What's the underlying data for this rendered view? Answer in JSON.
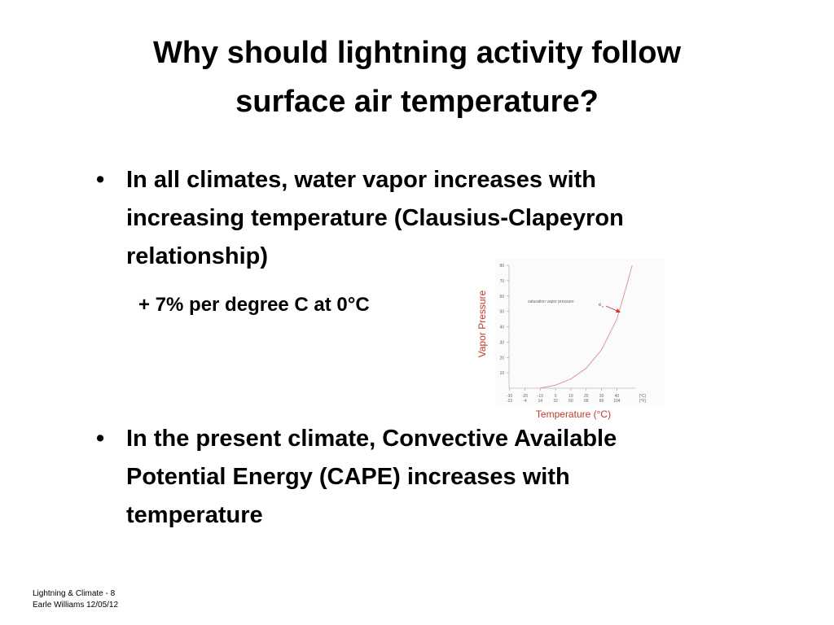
{
  "slide": {
    "title": [
      "Why should lightning activity follow",
      "surface air temperature?"
    ],
    "bullets": [
      {
        "lines": [
          "In all climates, water vapor increases with",
          "increasing temperature (Clausius-Clapeyron",
          "relationship)"
        ],
        "sub": "+ 7% per degree C at 0°C"
      },
      {
        "lines": [
          "In the present climate, Convective Available",
          "Potential Energy (CAPE) increases with",
          "temperature"
        ]
      }
    ],
    "footer": [
      "Lightning & Climate - 8",
      "Earle Williams 12/05/12"
    ]
  },
  "figure": {
    "y_label": "Vapor Pressure",
    "x_label": "Temperature (°C)",
    "curve_label": "saturation vapor pressure",
    "annotation": "e",
    "annotation_sub": "s",
    "ylim": [
      0,
      80
    ],
    "yticks": [
      10,
      20,
      30,
      40,
      50,
      60,
      70,
      80
    ],
    "xlim": [
      -33,
      52
    ],
    "xticks": [
      -30,
      -20,
      -10,
      0,
      10,
      20,
      30,
      40
    ],
    "xtick_unit": "(°C)",
    "xticks_f": [
      -22,
      -4,
      14,
      32,
      50,
      68,
      86,
      104
    ],
    "xtick_f_unit": "(°F)",
    "curve": {
      "x": [
        -10,
        0,
        10,
        20,
        30,
        40,
        45,
        50
      ],
      "y": [
        0,
        2,
        6,
        13,
        25,
        45,
        62,
        80
      ]
    },
    "color": "#d99a9a",
    "label_color": "#c0392b"
  }
}
